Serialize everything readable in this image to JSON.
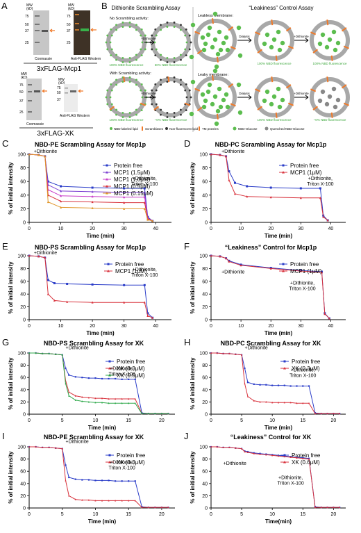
{
  "panel_letters": [
    "A",
    "B",
    "C",
    "D",
    "E",
    "F",
    "G",
    "H",
    "I",
    "J"
  ],
  "panel_a": {
    "blots": [
      {
        "mw_label": "MW\n(kD)",
        "ticks": [
          "75",
          "50",
          "37",
          "25"
        ],
        "caption": "Coomassie"
      },
      {
        "mw_label": "MW\n(kD)",
        "ticks": [
          "75",
          "50",
          "37",
          "25"
        ],
        "caption": "Anti-FLAG Western"
      },
      {
        "mw_label": "MW\n(kD)",
        "ticks": [
          "75",
          "50",
          "37",
          "25"
        ],
        "caption": "Coomassie"
      },
      {
        "mw_label": "MW\n(kD)",
        "ticks": [
          "75",
          "50",
          "37"
        ],
        "caption": "Anti-FLAG Western"
      }
    ],
    "label_mcp1": "3xFLAG-Mcp1",
    "label_xk": "3xFLAG-XK",
    "colors": {
      "band_arrow": "#f07a2a",
      "western_bg": "#4a3a2a",
      "coomassie_bg": "#b7b7b7"
    }
  },
  "panel_b": {
    "left_title": "Dithionite Scrambling Assay",
    "no_scramble_label": "No Scrambling activity:",
    "no_scramble_left": "100% NBD fluorescence",
    "no_scramble_right": "50% NBD fluorescence",
    "with_scramble_label": "With Scrambling activity:",
    "with_scramble_left": "100% NBD fluorescence",
    "with_scramble_right": "~0% NBD fluorescence",
    "dithionite_label": "+Dithionite",
    "legend": [
      "NBD-labeled lipid",
      "Scramblases",
      "Non-fluorescent lipid"
    ],
    "right_title": "“Leakiness” Control Assay",
    "leakless_label": "Leakless membrane:",
    "leakless_mid": "100% NBD fluorescence",
    "leakless_right": "100% NBD fluorescence",
    "leaky_label": "Leaky membrane:",
    "leaky_mid": "100% NBD fluorescence",
    "leaky_right": "~0% NBD fluorescence",
    "dialysis_label": "Dialysis",
    "right_legend": [
      "TM proteins",
      "NBD-Glucose",
      "Quenched NBD-Glucose"
    ],
    "colors": {
      "nbd": "#5cbd4f",
      "scramblase": "#f07a2a",
      "membrane": "#a8a8a8",
      "quenched": "#888888",
      "green_text": "#3aa63a"
    }
  },
  "chart_data": [
    {
      "type": "line",
      "panel": "C",
      "title": "NBD-PE Scrambling Assay for Mcp1p",
      "xlabel": "Time (min)",
      "ylabel": "% of initial intensity",
      "xlim": [
        0,
        45
      ],
      "ylim": [
        0,
        100
      ],
      "xticks": [
        "0",
        "10",
        "20",
        "30",
        "40"
      ],
      "yticks": [
        "0",
        "20",
        "40",
        "60",
        "80",
        "100"
      ],
      "annotations": [
        "+Dithionite",
        "+Dithionite,\nTriton X-100"
      ],
      "series": [
        {
          "name": "Protein free",
          "color": "#2a3cc8",
          "x": [
            0,
            3,
            5,
            6,
            10,
            20,
            30,
            36.5,
            37.5,
            39
          ],
          "y": [
            100,
            99,
            97,
            60,
            53,
            51,
            50,
            50,
            8,
            2
          ]
        },
        {
          "name": "MCP1 (1.5μM)",
          "color": "#7a3cd0",
          "x": [
            0,
            3,
            5,
            6,
            10,
            20,
            30,
            36.5,
            37.5,
            39
          ],
          "y": [
            100,
            99,
            97,
            55,
            46,
            45,
            44,
            44,
            7,
            2
          ]
        },
        {
          "name": "MCP1 (1.0μM)",
          "color": "#c83cc8",
          "x": [
            0,
            3,
            5,
            6,
            10,
            20,
            30,
            36.5,
            37.5,
            39
          ],
          "y": [
            100,
            99,
            97,
            48,
            39,
            38,
            37,
            37,
            6,
            2
          ]
        },
        {
          "name": "MCP1 (0.5μM)",
          "color": "#d8323c",
          "x": [
            0,
            3,
            5,
            6,
            10,
            20,
            30,
            36.5,
            37.5,
            39
          ],
          "y": [
            100,
            99,
            97,
            40,
            31,
            30,
            29,
            29,
            5,
            2
          ]
        },
        {
          "name": "MCP1 (0.15μM)",
          "color": "#e0962a",
          "x": [
            0,
            3,
            5,
            6,
            10,
            20,
            30,
            36.5,
            37.5,
            39
          ],
          "y": [
            100,
            99,
            97,
            30,
            22,
            21,
            20,
            20,
            4,
            2
          ]
        }
      ]
    },
    {
      "type": "line",
      "panel": "D",
      "title": "NBD-PC Scrambling Assay for Mcp1p",
      "xlabel": "Time (min)",
      "ylabel": "% of initial intensity",
      "xlim": [
        0,
        45
      ],
      "ylim": [
        0,
        100
      ],
      "xticks": [
        "0",
        "10",
        "20",
        "30",
        "40"
      ],
      "yticks": [
        "0",
        "20",
        "40",
        "60",
        "80",
        "100"
      ],
      "annotations": [
        "+Dithionite",
        "+Dithionite,\nTriton X-100"
      ],
      "series": [
        {
          "name": "Protein free",
          "color": "#2a3cc8",
          "x": [
            0,
            3,
            5,
            6,
            8,
            12,
            20,
            30,
            36.5,
            37.5,
            39
          ],
          "y": [
            100,
            99,
            97,
            75,
            58,
            53,
            51,
            50,
            50,
            10,
            3
          ]
        },
        {
          "name": "MCP1 (1μM)",
          "color": "#d8323c",
          "x": [
            0,
            3,
            5,
            6,
            8,
            12,
            20,
            30,
            36.5,
            37.5,
            39
          ],
          "y": [
            100,
            99,
            97,
            62,
            42,
            38,
            37,
            36,
            36,
            8,
            3
          ]
        }
      ]
    },
    {
      "type": "line",
      "panel": "E",
      "title": "NBD-PS Scrambling Assay for Mcp1p",
      "xlabel": "Time (min)",
      "ylabel": "% of initial intensity",
      "xlim": [
        0,
        45
      ],
      "ylim": [
        0,
        100
      ],
      "xticks": [
        "0",
        "10",
        "20",
        "30",
        "40"
      ],
      "yticks": [
        "0",
        "20",
        "40",
        "60",
        "80",
        "100"
      ],
      "annotations": [
        "+Dithionite",
        "+Dithionite,\nTriton X-100"
      ],
      "series": [
        {
          "name": "Protein free",
          "color": "#2a3cc8",
          "x": [
            0,
            3,
            5,
            6,
            8,
            12,
            20,
            30,
            36.5,
            37.5,
            39
          ],
          "y": [
            100,
            99,
            97,
            62,
            57,
            56,
            55,
            54,
            54,
            10,
            3
          ]
        },
        {
          "name": "MCP1 (1μM)",
          "color": "#d8323c",
          "x": [
            0,
            3,
            5,
            6,
            8,
            12,
            20,
            30,
            36.5,
            37.5,
            39
          ],
          "y": [
            100,
            99,
            97,
            40,
            30,
            28,
            27,
            27,
            27,
            6,
            3
          ]
        }
      ]
    },
    {
      "type": "line",
      "panel": "F",
      "title": "“Leakiness” Control for Mcp1p",
      "xlabel": "Time (min)",
      "ylabel": "% of initial intensity",
      "xlim": [
        0,
        45
      ],
      "ylim": [
        0,
        100
      ],
      "xticks": [
        "0",
        "10",
        "20",
        "30",
        "40"
      ],
      "yticks": [
        "0",
        "20",
        "40",
        "60",
        "80",
        "100"
      ],
      "annotations": [
        "+Dithionite",
        "+Dithionite,\nTriton X-100"
      ],
      "series": [
        {
          "name": "Protein free",
          "color": "#2a3cc8",
          "x": [
            0,
            3,
            5,
            6,
            10,
            20,
            30,
            37,
            38,
            39.5
          ],
          "y": [
            100,
            99,
            96,
            92,
            86,
            81,
            77,
            75,
            10,
            2
          ]
        },
        {
          "name": "MCP1 (1μM)",
          "color": "#d8323c",
          "x": [
            0,
            3,
            5,
            6,
            10,
            20,
            30,
            37,
            38,
            39.5
          ],
          "y": [
            100,
            99,
            96,
            91,
            85,
            80,
            76,
            74,
            9,
            2
          ]
        }
      ]
    },
    {
      "type": "line",
      "panel": "G",
      "title": "NBD-PS Scrambling Assay for XK",
      "xlabel": "Time (min)",
      "ylabel": "% of initial intensity",
      "xlim": [
        0,
        22
      ],
      "ylim": [
        0,
        100
      ],
      "xticks": [
        "0",
        "5",
        "10",
        "15",
        "20"
      ],
      "yticks": [
        "0",
        "20",
        "40",
        "60",
        "80",
        "100"
      ],
      "annotations": [
        "+Dithionite",
        "+Dithionite,\nTriton X-100"
      ],
      "series": [
        {
          "name": "Protein free",
          "color": "#2a3cc8",
          "x": [
            0,
            1,
            2,
            3,
            4,
            5,
            5.5,
            6,
            7,
            8,
            9,
            10,
            11,
            12,
            13,
            14,
            15,
            16,
            17,
            18,
            19,
            20,
            21
          ],
          "y": [
            100,
            100,
            99,
            99,
            98,
            97,
            75,
            64,
            61,
            60,
            59,
            59,
            58,
            58,
            58,
            57,
            57,
            57,
            2,
            1,
            1,
            1,
            1
          ]
        },
        {
          "name": "XK (0.3μM)",
          "color": "#d8323c",
          "x": [
            0,
            1,
            2,
            3,
            4,
            5,
            5.5,
            6,
            7,
            8,
            9,
            10,
            11,
            12,
            13,
            14,
            15,
            16,
            17,
            18,
            19,
            20,
            21
          ],
          "y": [
            100,
            100,
            99,
            99,
            98,
            97,
            55,
            36,
            30,
            28,
            27,
            26,
            26,
            25,
            25,
            25,
            25,
            25,
            1,
            1,
            1,
            1,
            1
          ]
        },
        {
          "name": "XK (0.6μM)",
          "color": "#2ea84a",
          "x": [
            0,
            1,
            2,
            3,
            4,
            5,
            5.5,
            6,
            7,
            8,
            9,
            10,
            11,
            12,
            13,
            14,
            15,
            16,
            17,
            18,
            19,
            20,
            21
          ],
          "y": [
            100,
            100,
            99,
            99,
            98,
            97,
            50,
            30,
            23,
            21,
            20,
            19,
            19,
            18,
            18,
            18,
            18,
            18,
            1,
            1,
            1,
            1,
            1
          ]
        }
      ]
    },
    {
      "type": "line",
      "panel": "H",
      "title": "NBD-PC Scrambling Assay for XK",
      "xlabel": "Time (min)",
      "ylabel": "% of initial intensity",
      "xlim": [
        0,
        22
      ],
      "ylim": [
        0,
        100
      ],
      "xticks": [
        "0",
        "5",
        "10",
        "15",
        "20"
      ],
      "yticks": [
        "0",
        "20",
        "40",
        "60",
        "80",
        "100"
      ],
      "annotations": [
        "+Dithionite",
        "+Dithionite,\nTriton X-100"
      ],
      "series": [
        {
          "name": "Protein free",
          "color": "#2a3cc8",
          "x": [
            0,
            1,
            2,
            3,
            4,
            5,
            5.5,
            6,
            7,
            8,
            9,
            10,
            11,
            12,
            13,
            14,
            15,
            16,
            17,
            18,
            19,
            20,
            21
          ],
          "y": [
            100,
            100,
            99,
            99,
            98,
            97,
            75,
            52,
            49,
            48,
            48,
            47,
            47,
            47,
            46,
            46,
            46,
            46,
            2,
            1,
            1,
            1,
            1
          ]
        },
        {
          "name": "XK (0.3μM)",
          "color": "#d8323c",
          "x": [
            0,
            1,
            2,
            3,
            4,
            5,
            5.5,
            6,
            7,
            8,
            9,
            10,
            11,
            12,
            13,
            14,
            15,
            16,
            17,
            18,
            19,
            20,
            21
          ],
          "y": [
            100,
            100,
            99,
            99,
            98,
            97,
            50,
            29,
            22,
            20,
            20,
            19,
            19,
            19,
            19,
            18,
            18,
            18,
            1,
            1,
            1,
            1,
            1
          ]
        }
      ]
    },
    {
      "type": "line",
      "panel": "I",
      "title": "NBD-PE Scrambling Assay for XK",
      "xlabel": "Time (min)",
      "ylabel": "% of initial intensity",
      "xlim": [
        0,
        22
      ],
      "ylim": [
        0,
        100
      ],
      "xticks": [
        "0",
        "5",
        "10",
        "15",
        "20"
      ],
      "yticks": [
        "0",
        "20",
        "40",
        "60",
        "80",
        "100"
      ],
      "annotations": [
        "+Dithionite",
        "+Dithionite,\nTriton X-100"
      ],
      "series": [
        {
          "name": "Protein free",
          "color": "#2a3cc8",
          "x": [
            0,
            1,
            2,
            3,
            4,
            5,
            5.5,
            6,
            7,
            8,
            9,
            10,
            11,
            12,
            13,
            14,
            15,
            16,
            17,
            18,
            19,
            20,
            21
          ],
          "y": [
            100,
            100,
            99,
            99,
            98,
            97,
            70,
            50,
            47,
            46,
            46,
            45,
            45,
            45,
            44,
            44,
            44,
            44,
            2,
            1,
            1,
            1,
            1
          ]
        },
        {
          "name": "XK (0.3μM)",
          "color": "#d8323c",
          "x": [
            0,
            1,
            2,
            3,
            4,
            5,
            5.5,
            6,
            7,
            8,
            9,
            10,
            11,
            12,
            13,
            14,
            15,
            16,
            17,
            18,
            19,
            20,
            21
          ],
          "y": [
            100,
            100,
            99,
            99,
            98,
            97,
            45,
            20,
            14,
            13,
            13,
            12,
            12,
            12,
            12,
            12,
            12,
            12,
            1,
            1,
            1,
            1,
            1
          ]
        }
      ]
    },
    {
      "type": "line",
      "panel": "J",
      "title": "“Leakiness” Control for XK",
      "xlabel": "Time(min)",
      "ylabel": "% of initial intensity",
      "xlim": [
        0,
        22
      ],
      "ylim": [
        0,
        100
      ],
      "xticks": [
        "0",
        "5",
        "10",
        "15",
        "20"
      ],
      "yticks": [
        "0",
        "20",
        "40",
        "60",
        "80",
        "100"
      ],
      "annotations": [
        "+Dithionite",
        "+Dithionite,\nTriton X-100"
      ],
      "series": [
        {
          "name": "Protein free",
          "color": "#2a3cc8",
          "x": [
            0,
            1,
            2,
            3,
            4,
            5,
            5.5,
            6,
            7,
            8,
            9,
            10,
            11,
            12,
            13,
            14,
            15,
            16,
            17,
            18,
            19,
            20,
            21
          ],
          "y": [
            100,
            100,
            99,
            99,
            98,
            97,
            93,
            92,
            90,
            89,
            88,
            87,
            86,
            85,
            84,
            83,
            82,
            81,
            2,
            1,
            1,
            1,
            1
          ]
        },
        {
          "name": "XK (0.6μM)",
          "color": "#d8323c",
          "x": [
            0,
            1,
            2,
            3,
            4,
            5,
            5.5,
            6,
            7,
            8,
            9,
            10,
            11,
            12,
            13,
            14,
            15,
            16,
            17,
            18,
            19,
            20,
            21
          ],
          "y": [
            100,
            100,
            99,
            99,
            98,
            97,
            92,
            91,
            89,
            88,
            87,
            86,
            85,
            84,
            83,
            82,
            81,
            80,
            1,
            1,
            1,
            1,
            1
          ]
        }
      ]
    }
  ]
}
